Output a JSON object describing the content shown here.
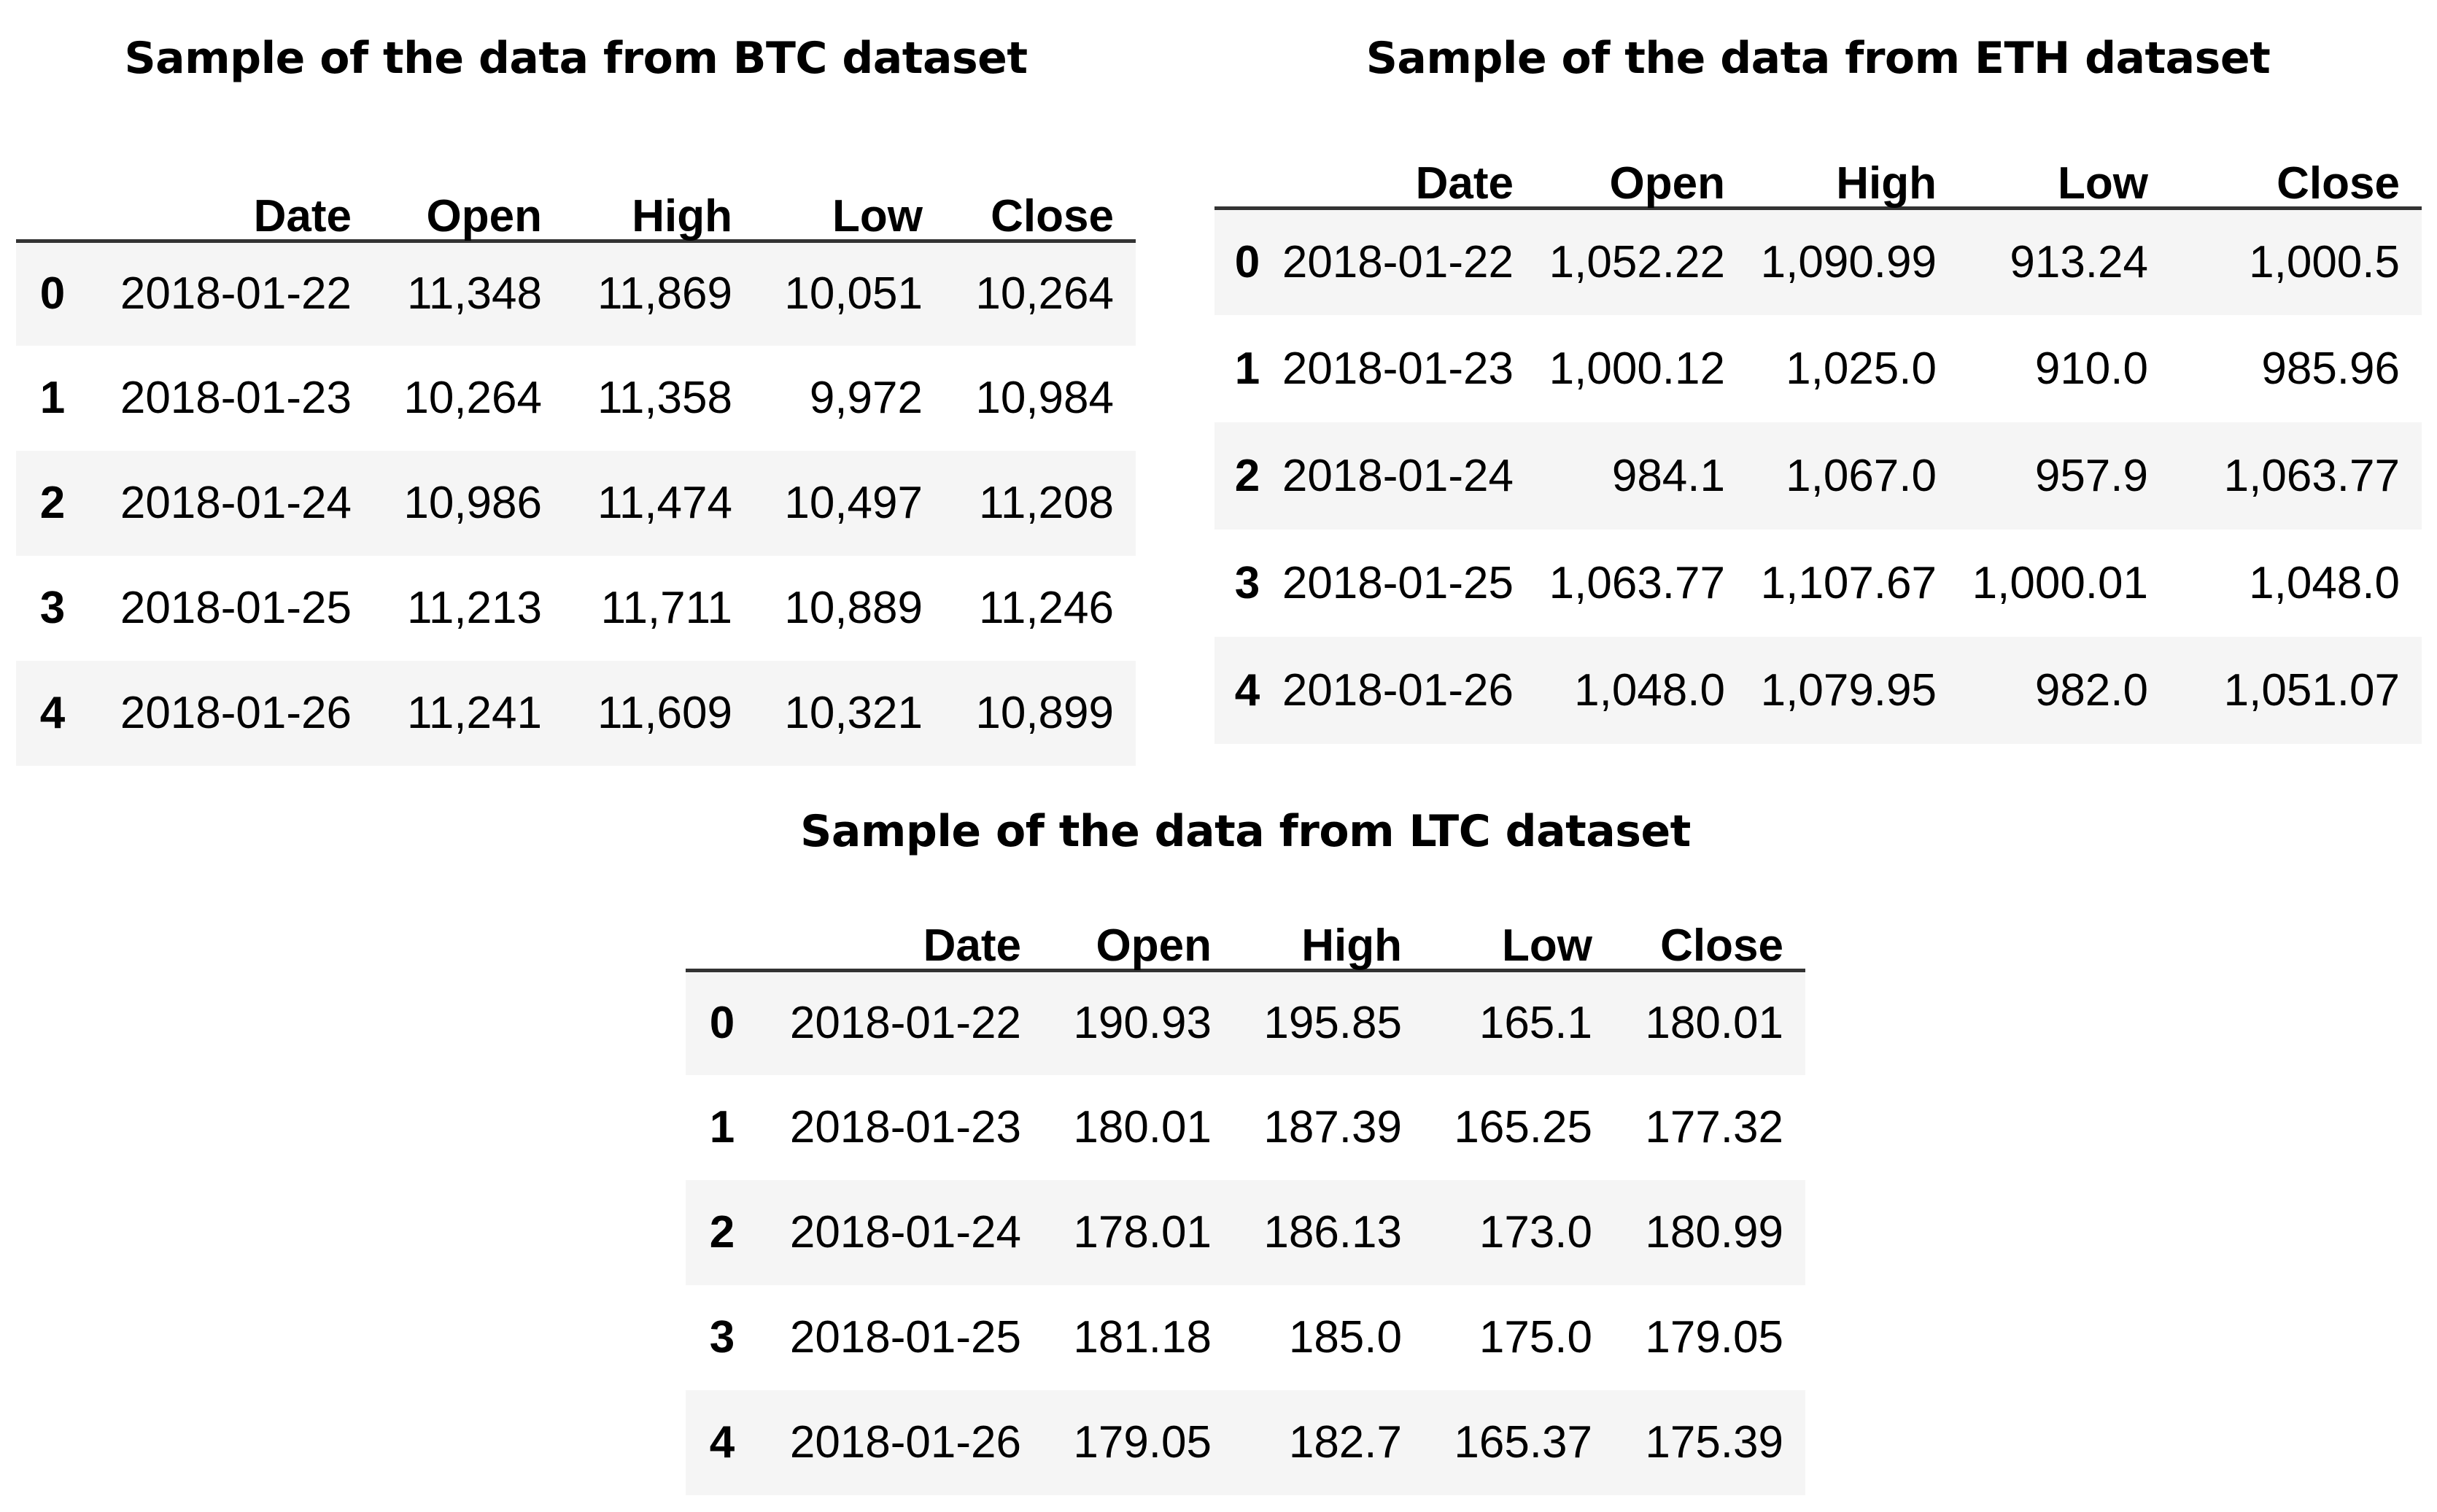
{
  "btc": {
    "title": "Sample of the data from BTC dataset",
    "columns": [
      "Date",
      "Open",
      "High",
      "Low",
      "Close"
    ],
    "rows": [
      {
        "index": "0",
        "date": "2018-01-22",
        "open": "11,348",
        "high": "11,869",
        "low": "10,051",
        "close": "10,264"
      },
      {
        "index": "1",
        "date": "2018-01-23",
        "open": "10,264",
        "high": "11,358",
        "low": "9,972",
        "close": "10,984"
      },
      {
        "index": "2",
        "date": "2018-01-24",
        "open": "10,986",
        "high": "11,474",
        "low": "10,497",
        "close": "11,208"
      },
      {
        "index": "3",
        "date": "2018-01-25",
        "open": "11,213",
        "high": "11,711",
        "low": "10,889",
        "close": "11,246"
      },
      {
        "index": "4",
        "date": "2018-01-26",
        "open": "11,241",
        "high": "11,609",
        "low": "10,321",
        "close": "10,899"
      }
    ]
  },
  "eth": {
    "title": "Sample of the data from ETH dataset",
    "columns": [
      "Date",
      "Open",
      "High",
      "Low",
      "Close"
    ],
    "rows": [
      {
        "index": "0",
        "date": "2018-01-22",
        "open": "1,052.22",
        "high": "1,090.99",
        "low": "913.24",
        "close": "1,000.5"
      },
      {
        "index": "1",
        "date": "2018-01-23",
        "open": "1,000.12",
        "high": "1,025.0",
        "low": "910.0",
        "close": "985.96"
      },
      {
        "index": "2",
        "date": "2018-01-24",
        "open": "984.1",
        "high": "1,067.0",
        "low": "957.9",
        "close": "1,063.77"
      },
      {
        "index": "3",
        "date": "2018-01-25",
        "open": "1,063.77",
        "high": "1,107.67",
        "low": "1,000.01",
        "close": "1,048.0"
      },
      {
        "index": "4",
        "date": "2018-01-26",
        "open": "1,048.0",
        "high": "1,079.95",
        "low": "982.0",
        "close": "1,051.07"
      }
    ]
  },
  "ltc": {
    "title": "Sample of the data from LTC dataset",
    "columns": [
      "Date",
      "Open",
      "High",
      "Low",
      "Close"
    ],
    "rows": [
      {
        "index": "0",
        "date": "2018-01-22",
        "open": "190.93",
        "high": "195.85",
        "low": "165.1",
        "close": "180.01"
      },
      {
        "index": "1",
        "date": "2018-01-23",
        "open": "180.01",
        "high": "187.39",
        "low": "165.25",
        "close": "177.32"
      },
      {
        "index": "2",
        "date": "2018-01-24",
        "open": "178.01",
        "high": "186.13",
        "low": "173.0",
        "close": "180.99"
      },
      {
        "index": "3",
        "date": "2018-01-25",
        "open": "181.18",
        "high": "185.0",
        "low": "175.0",
        "close": "179.05"
      },
      {
        "index": "4",
        "date": "2018-01-26",
        "open": "179.05",
        "high": "182.7",
        "low": "165.37",
        "close": "175.39"
      }
    ]
  }
}
